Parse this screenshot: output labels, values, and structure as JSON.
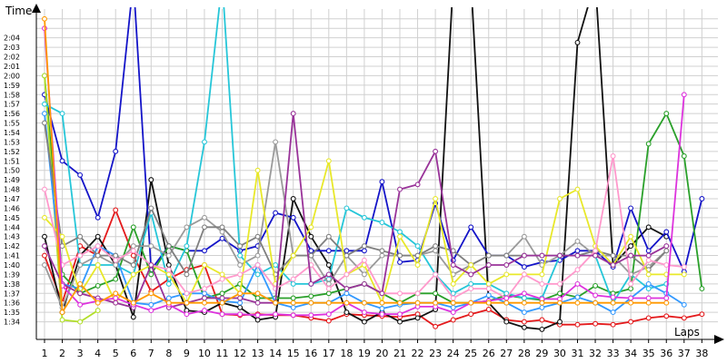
{
  "chart_data": {
    "type": "line",
    "ylabel": "Time",
    "xlabel": "Laps",
    "x": [
      1,
      2,
      3,
      4,
      5,
      6,
      7,
      8,
      9,
      10,
      11,
      12,
      13,
      14,
      15,
      16,
      17,
      18,
      19,
      20,
      21,
      22,
      23,
      24,
      25,
      26,
      27,
      28,
      29,
      30,
      31,
      32,
      33,
      34,
      35,
      36,
      37,
      38
    ],
    "ylim": [
      93,
      126
    ],
    "y_ticks": [
      "1:34",
      "1:35",
      "1:36",
      "1:37",
      "1:38",
      "1:39",
      "1:40",
      "1:41",
      "1:42",
      "1:43",
      "1:44",
      "1:45",
      "1:46",
      "1:47",
      "1:48",
      "1:49",
      "1:50",
      "1:51",
      "1:52",
      "1:53",
      "1:54",
      "1:55",
      "1:56",
      "1:57",
      "1:58",
      "1:59",
      "2:00",
      "2:01",
      "2:02",
      "2:03",
      "2:04"
    ],
    "grid": true,
    "series": [
      {
        "color": "#e41a1c",
        "values": [
          101,
          96,
          102,
          101,
          105.8,
          101,
          97.2,
          98.5,
          99.5,
          100,
          94.8,
          94.7,
          94.8,
          94.7,
          94.7,
          94.4,
          94.1,
          94.8,
          94.7,
          94.6,
          94.5,
          94.8,
          93.5,
          94.2,
          94.8,
          95.3,
          94.2,
          94,
          94.2,
          93.7,
          93.7,
          93.8,
          93.7,
          94,
          94.4,
          94.6,
          94.4,
          94.8
        ]
      },
      {
        "color": "#111111",
        "values": [
          103,
          95,
          101,
          103,
          100,
          94.5,
          109,
          100,
          95.2,
          95,
          96,
          95.5,
          94.2,
          94.5,
          107,
          103,
          100,
          95,
          94,
          95,
          94,
          94.4,
          95.3,
          130,
          130,
          96,
          94,
          93.4,
          93.2,
          94,
          123.5,
          130,
          100,
          102,
          104,
          103,
          null,
          null
        ]
      },
      {
        "color": "#1414c8",
        "values": [
          118,
          111,
          109.5,
          105,
          112,
          130,
          99.5,
          102,
          101.5,
          101.5,
          102.8,
          101.5,
          102,
          105.5,
          105,
          101.5,
          101.5,
          101.5,
          101.5,
          108.8,
          100.3,
          100.5,
          106.5,
          100.5,
          104,
          101,
          101,
          99.8,
          100.3,
          100.5,
          101.5,
          101.5,
          99.8,
          106,
          101.5,
          103.5,
          99.3,
          107
        ]
      },
      {
        "color": "#2aa02a",
        "values": [
          120,
          99,
          97,
          97.8,
          98.5,
          104,
          99,
          102,
          101.5,
          96.5,
          97,
          98,
          96.5,
          96.5,
          96.5,
          96.7,
          97,
          97.5,
          98,
          97,
          96,
          97,
          97,
          96,
          96,
          96.2,
          96.8,
          96.5,
          96.3,
          97,
          96.6,
          97.8,
          97,
          97.5,
          112.8,
          116,
          111.5,
          97.5
        ]
      },
      {
        "color": "#b2df2a",
        "values": [
          120,
          94.2,
          94,
          95.2,
          null,
          null,
          null,
          null,
          null,
          null,
          null,
          null,
          null,
          null,
          null,
          null,
          null,
          null,
          null,
          null,
          null,
          null,
          null,
          null,
          null,
          null,
          null,
          null,
          null,
          null,
          null,
          null,
          null,
          null,
          null,
          null,
          null,
          null
        ]
      },
      {
        "color": "#26c6d8",
        "values": [
          117,
          116,
          100,
          100,
          100,
          99,
          105.5,
          98,
          102,
          113,
          130,
          101,
          99,
          100,
          98,
          98,
          98.5,
          106,
          105,
          104.5,
          103.5,
          102,
          99,
          97,
          98,
          98,
          97,
          96.5,
          96.5,
          101,
          101,
          101,
          96,
          99,
          97.5,
          98,
          null,
          null
        ]
      },
      {
        "color": "#3399ff",
        "values": [
          116,
          98,
          97.5,
          102,
          101,
          96,
          95.8,
          96.5,
          97,
          97,
          96.2,
          96,
          100,
          96,
          95.5,
          96,
          96,
          97,
          96,
          95.4,
          95.8,
          96,
          96,
          95.5,
          96,
          96.8,
          96,
          95,
          95.5,
          96,
          96.6,
          96,
          95,
          96.5,
          98,
          97,
          95.8,
          null
        ]
      },
      {
        "color": "#9a9a9a",
        "values": [
          100,
          95.5,
          100,
          101,
          100,
          102,
          102,
          101,
          104,
          105,
          103.5,
          100,
          101,
          113,
          101,
          101,
          98,
          101,
          99,
          101,
          101,
          101,
          101.5,
          99,
          100,
          101,
          101,
          103,
          100,
          101,
          102.5,
          101,
          101,
          99,
          99.8,
          101.5,
          null,
          null
        ]
      },
      {
        "color": "#7f7f7f",
        "values": [
          115,
          102,
          103,
          101,
          101,
          100,
          106,
          102,
          99,
          104,
          104,
          102,
          103,
          99,
          101,
          101,
          103,
          101,
          102,
          101.5,
          101,
          101,
          102,
          101.5,
          100,
          101,
          101,
          101,
          101,
          101,
          101,
          101.5,
          101,
          101,
          99.5,
          101.5,
          null,
          null
        ]
      },
      {
        "color": "#e8e82a",
        "values": [
          105,
          103,
          97,
          100,
          96,
          99,
          100,
          99,
          96,
          100,
          99,
          97,
          110,
          98,
          101,
          104,
          111,
          99,
          100,
          96,
          103,
          100,
          107,
          98,
          100,
          98,
          99,
          99,
          99,
          107,
          108,
          102,
          100,
          103,
          99,
          99,
          99,
          null
        ]
      },
      {
        "color": "#ff99cc",
        "values": [
          108,
          100,
          101,
          102,
          100.5,
          101.5,
          100,
          99.5,
          97,
          97.5,
          98.5,
          99,
          100,
          97.5,
          98.5,
          100,
          97.5,
          99,
          100.5,
          97,
          97,
          97,
          99,
          96.5,
          97.5,
          97.5,
          96.5,
          99,
          98,
          98,
          99.5,
          101.5,
          111.5,
          98,
          100.5,
          100,
          99.8,
          null
        ]
      },
      {
        "color": "#993399",
        "values": [
          102,
          98,
          97,
          96.5,
          96,
          95.5,
          100,
          95.5,
          96,
          96.5,
          96.5,
          96.5,
          96,
          96,
          116,
          98,
          99,
          97.5,
          98,
          97,
          108,
          108.5,
          112,
          100,
          99,
          100,
          100,
          101,
          101,
          101,
          101,
          101,
          100,
          101,
          101,
          102,
          null,
          null
        ]
      },
      {
        "color": "#dd33dd",
        "values": [
          125,
          97.8,
          95.8,
          96.2,
          96.5,
          95.8,
          95.2,
          95.8,
          94.8,
          95.2,
          94.8,
          94.8,
          94.7,
          94.8,
          94.7,
          94.7,
          94.8,
          96,
          95,
          94.8,
          94.8,
          95.6,
          95.6,
          95,
          96,
          96.2,
          96.5,
          97,
          96.4,
          96.4,
          98,
          96.8,
          96.6,
          96.5,
          96.5,
          96.5,
          118,
          null
        ]
      },
      {
        "color": "#ff9900",
        "values": [
          126,
          95,
          98,
          96,
          97,
          96,
          97,
          96,
          96,
          96,
          96,
          97,
          97,
          96,
          96,
          96,
          96,
          96,
          96,
          96,
          96,
          96,
          96,
          96,
          96,
          96,
          96,
          96,
          96,
          96,
          96,
          96,
          96,
          96,
          96,
          96,
          null,
          null
        ]
      }
    ]
  }
}
